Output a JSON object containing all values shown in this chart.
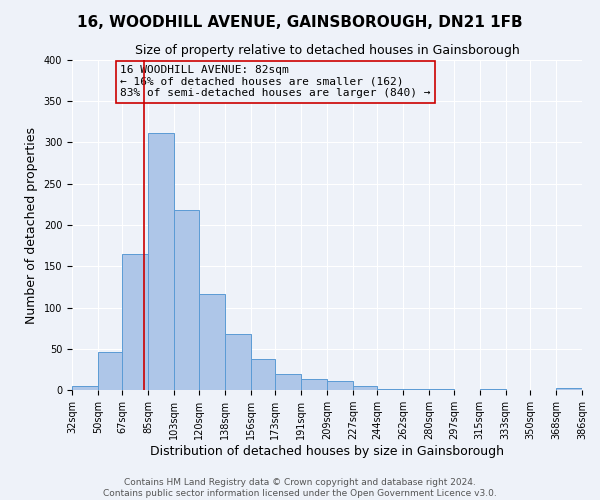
{
  "title": "16, WOODHILL AVENUE, GAINSBOROUGH, DN21 1FB",
  "subtitle": "Size of property relative to detached houses in Gainsborough",
  "xlabel": "Distribution of detached houses by size in Gainsborough",
  "ylabel": "Number of detached properties",
  "bin_edges": [
    32,
    50,
    67,
    85,
    103,
    120,
    138,
    156,
    173,
    191,
    209,
    227,
    244,
    262,
    280,
    297,
    315,
    333,
    350,
    368,
    386
  ],
  "bin_counts": [
    5,
    46,
    165,
    312,
    218,
    116,
    68,
    38,
    19,
    13,
    11,
    5,
    1,
    1,
    1,
    0,
    1,
    0,
    0,
    2
  ],
  "bar_color": "#aec6e8",
  "bar_edge_color": "#5b9bd5",
  "property_size": 82,
  "vline_color": "#cc0000",
  "annotation_text": "16 WOODHILL AVENUE: 82sqm\n← 16% of detached houses are smaller (162)\n83% of semi-detached houses are larger (840) →",
  "annotation_box_edge": "#cc0000",
  "ylim": [
    0,
    400
  ],
  "tick_labels": [
    "32sqm",
    "50sqm",
    "67sqm",
    "85sqm",
    "103sqm",
    "120sqm",
    "138sqm",
    "156sqm",
    "173sqm",
    "191sqm",
    "209sqm",
    "227sqm",
    "244sqm",
    "262sqm",
    "280sqm",
    "297sqm",
    "315sqm",
    "333sqm",
    "350sqm",
    "368sqm",
    "386sqm"
  ],
  "footer_line1": "Contains HM Land Registry data © Crown copyright and database right 2024.",
  "footer_line2": "Contains public sector information licensed under the Open Government Licence v3.0.",
  "background_color": "#eef2f9",
  "grid_color": "#ffffff",
  "title_fontsize": 11,
  "subtitle_fontsize": 9,
  "axis_label_fontsize": 9,
  "tick_fontsize": 7,
  "annotation_fontsize": 8,
  "footer_fontsize": 6.5
}
